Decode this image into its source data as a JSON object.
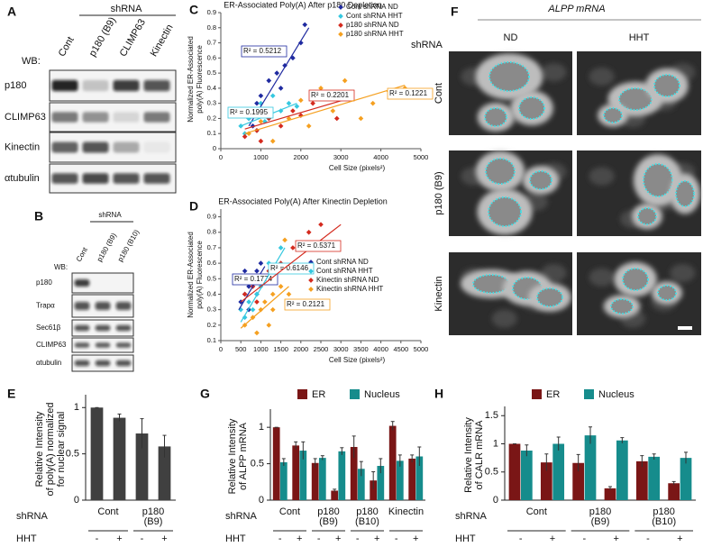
{
  "panels": {
    "A": {
      "letter": "A",
      "group_label": "shRNA",
      "lanes": [
        "Cont",
        "p180 (B9)",
        "CLIMP63",
        "Kinectin"
      ],
      "wb": "WB:",
      "rows": [
        "p180",
        "CLIMP63",
        "Kinectin",
        "αtubulin"
      ]
    },
    "B": {
      "letter": "B",
      "group_label": "shRNA",
      "lanes": [
        "Cont",
        "p180 (B9)",
        "p180 (B10)"
      ],
      "wb": "WB:",
      "rows": [
        "p180",
        "Trapα",
        "Sec61β",
        "CLIMP63",
        "αtubulin"
      ]
    },
    "F": {
      "letter": "F",
      "title": "ALPP mRNA",
      "row_title": "shRNA",
      "columns": [
        "ND",
        "HHT"
      ],
      "rows": [
        "Cont",
        "p180 (B9)",
        "Kinectin"
      ]
    }
  },
  "chart_data": [
    {
      "type": "scatter",
      "panel": "C",
      "title": "ER-Associated Poly(A) After p180 Depletion",
      "xlabel": "Cell Size (pixels²)",
      "ylabel": [
        "Normalized ER-Associated",
        "poly(A) Fluorescence"
      ],
      "xlim": [
        0,
        5000
      ],
      "xticks": [
        0,
        1000,
        2000,
        3000,
        4000,
        5000
      ],
      "ylim": [
        0,
        0.9
      ],
      "yticks": [
        0,
        0.1,
        0.2,
        0.3,
        0.4,
        0.5,
        0.6,
        0.7,
        0.8,
        0.9
      ],
      "series": [
        {
          "name": "Cont shRNA ND",
          "color": "#1f2aa0",
          "x": [
            700,
            900,
            1000,
            1200,
            1400,
            1500,
            1800,
            2000,
            2100,
            1100,
            800,
            1600
          ],
          "values": [
            0.2,
            0.3,
            0.35,
            0.45,
            0.5,
            0.4,
            0.6,
            0.7,
            0.82,
            0.25,
            0.15,
            0.55
          ],
          "fit": {
            "x": [
              700,
              2200
            ],
            "y": [
              0.15,
              0.8
            ],
            "label": "R² = 0.5212"
          }
        },
        {
          "name": "Cont shRNA HHT",
          "color": "#35c8e0",
          "x": [
            500,
            600,
            700,
            800,
            900,
            1000,
            1100,
            1200,
            1300,
            1500,
            1700,
            1900
          ],
          "values": [
            0.15,
            0.1,
            0.2,
            0.25,
            0.12,
            0.3,
            0.18,
            0.2,
            0.35,
            0.25,
            0.3,
            0.28
          ],
          "fit": {
            "x": [
              500,
              1900
            ],
            "y": [
              0.15,
              0.3
            ],
            "label": "R² = 0.1995"
          }
        },
        {
          "name": "p180 shRNA ND",
          "color": "#d42a1e",
          "x": [
            600,
            900,
            1200,
            1500,
            1800,
            2000,
            2300,
            2600,
            2900,
            3200,
            1000
          ],
          "values": [
            0.08,
            0.12,
            0.2,
            0.15,
            0.25,
            0.22,
            0.3,
            0.35,
            0.2,
            0.35,
            0.05
          ],
          "fit": {
            "x": [
              600,
              3300
            ],
            "y": [
              0.13,
              0.34
            ],
            "label": "R² = 0.2201"
          }
        },
        {
          "name": "p180 shRNA HHT",
          "color": "#f5a020",
          "x": [
            700,
            1000,
            1300,
            1700,
            2200,
            2500,
            2800,
            3100,
            3500,
            3800,
            4200,
            4600,
            2000
          ],
          "values": [
            0.1,
            0.18,
            0.05,
            0.2,
            0.15,
            0.4,
            0.25,
            0.45,
            0.2,
            0.3,
            0.38,
            0.4,
            0.32
          ],
          "fit": {
            "x": [
              600,
              4600
            ],
            "y": [
              0.1,
              0.42
            ],
            "label": "R² = 0.1221"
          }
        }
      ]
    },
    {
      "type": "scatter",
      "panel": "D",
      "title": "ER-Associated Poly(A) After Kinectin Depletion",
      "xlabel": "Cell Size (pixels²)",
      "ylabel": [
        "Normalized ER-Associated",
        "poly(A) Fluorescence"
      ],
      "xlim": [
        0,
        5000
      ],
      "xticks": [
        0,
        500,
        1000,
        1500,
        2000,
        2500,
        3000,
        3500,
        4000,
        4500,
        5000
      ],
      "ylim": [
        0.1,
        0.95
      ],
      "yticks": [
        0.1,
        0.2,
        0.3,
        0.4,
        0.5,
        0.6,
        0.7,
        0.8,
        0.9
      ],
      "series": [
        {
          "name": "Cont shRNA ND",
          "color": "#1f2aa0",
          "x": [
            500,
            600,
            700,
            800,
            900,
            1000,
            700,
            900,
            1100,
            600
          ],
          "values": [
            0.35,
            0.4,
            0.45,
            0.5,
            0.55,
            0.6,
            0.3,
            0.4,
            0.5,
            0.55
          ],
          "fit": {
            "x": [
              450,
              1100
            ],
            "y": [
              0.3,
              0.58
            ],
            "label": "R² = 0.1774"
          }
        },
        {
          "name": "Cont shRNA HHT",
          "color": "#35c8e0",
          "x": [
            500,
            600,
            700,
            800,
            900,
            1000,
            1100,
            1300,
            1500,
            1200
          ],
          "values": [
            0.3,
            0.25,
            0.35,
            0.3,
            0.4,
            0.45,
            0.5,
            0.55,
            0.7,
            0.6
          ],
          "fit": {
            "x": [
              500,
              1600
            ],
            "y": [
              0.22,
              0.7
            ],
            "label": "R² = 0.6146"
          }
        },
        {
          "name": "Kinectin shRNA ND",
          "color": "#d42a1e",
          "x": [
            600,
            800,
            1000,
            1200,
            1500,
            1800,
            2200,
            2500,
            900
          ],
          "values": [
            0.4,
            0.45,
            0.5,
            0.55,
            0.6,
            0.7,
            0.8,
            0.85,
            0.35
          ],
          "fit": {
            "x": [
              500,
              3000
            ],
            "y": [
              0.35,
              0.85
            ],
            "label": "R² = 0.5371"
          }
        },
        {
          "name": "Kinectin shRNA HHT",
          "color": "#f5a020",
          "x": [
            600,
            800,
            900,
            1000,
            1100,
            1200,
            1300,
            1500,
            1700,
            1600,
            1300
          ],
          "values": [
            0.2,
            0.25,
            0.15,
            0.3,
            0.35,
            0.2,
            0.4,
            0.45,
            0.4,
            0.75,
            0.3
          ],
          "fit": {
            "x": [
              500,
              1700
            ],
            "y": [
              0.18,
              0.45
            ],
            "label": "R² = 0.2121"
          }
        }
      ]
    },
    {
      "type": "bar",
      "panel": "E",
      "ylabel": [
        "Relative Intensity",
        "of poly(A) normalized",
        "for nuclear signal"
      ],
      "group_title": "shRNA",
      "category_title": "HHT",
      "groups": [
        [
          "Cont"
        ],
        [
          "p180",
          "(B9)"
        ]
      ],
      "categories": [
        "-",
        "+",
        "-",
        "+"
      ],
      "values": [
        1,
        0.89,
        0.72,
        0.58
      ],
      "errors": [
        0,
        0.04,
        0.16,
        0.12
      ],
      "color": "#404040",
      "ylim": [
        0,
        1.1
      ],
      "yticks": [
        0,
        0.5,
        1
      ]
    },
    {
      "type": "bar",
      "panel": "G",
      "ylabel": [
        "Relative Intensity",
        "of ALPP mRNA"
      ],
      "group_title": "shRNA",
      "category_title": "HHT",
      "groups": [
        [
          "Cont"
        ],
        [
          "p180",
          "(B9)"
        ],
        [
          "p180",
          "(B10)"
        ],
        [
          "Kinectin"
        ]
      ],
      "categories": [
        "-",
        "+",
        "-",
        "+",
        "-",
        "+",
        "-",
        "+"
      ],
      "series": [
        {
          "name": "ER",
          "color": "#7a1616",
          "values": [
            1.0,
            0.75,
            0.51,
            0.13,
            0.73,
            0.27,
            1.02,
            0.57
          ],
          "errors": [
            0,
            0.05,
            0.06,
            0.02,
            0.15,
            0.12,
            0.06,
            0.05
          ]
        },
        {
          "name": "Nucleus",
          "color": "#168c8c",
          "values": [
            0.52,
            0.68,
            0.58,
            0.67,
            0.43,
            0.47,
            0.54,
            0.6
          ],
          "errors": [
            0.05,
            0.12,
            0.03,
            0.05,
            0.1,
            0.1,
            0.08,
            0.13
          ]
        }
      ],
      "ylim": [
        0,
        1.2
      ],
      "yticks": [
        0,
        0.5,
        1
      ]
    },
    {
      "type": "bar",
      "panel": "H",
      "ylabel": [
        "Relative Intensity",
        "of CALR mRNA"
      ],
      "group_title": "shRNA",
      "category_title": "HHT",
      "groups": [
        [
          "Cont"
        ],
        [
          "p180",
          "(B9)"
        ],
        [
          "p180",
          "(B10)"
        ]
      ],
      "categories": [
        "-",
        "+",
        "-",
        "+",
        "-",
        "+"
      ],
      "series": [
        {
          "name": "ER",
          "color": "#7a1616",
          "values": [
            1.0,
            0.67,
            0.66,
            0.21,
            0.69,
            0.3
          ],
          "errors": [
            0,
            0.15,
            0.15,
            0.03,
            0.1,
            0.03
          ]
        },
        {
          "name": "Nucleus",
          "color": "#168c8c",
          "values": [
            0.88,
            1.0,
            1.15,
            1.06,
            0.77,
            0.75
          ],
          "errors": [
            0.1,
            0.12,
            0.15,
            0.05,
            0.05,
            0.1
          ]
        }
      ],
      "ylim": [
        0,
        1.6
      ],
      "yticks": [
        0,
        0.5,
        1,
        1.5
      ]
    }
  ]
}
